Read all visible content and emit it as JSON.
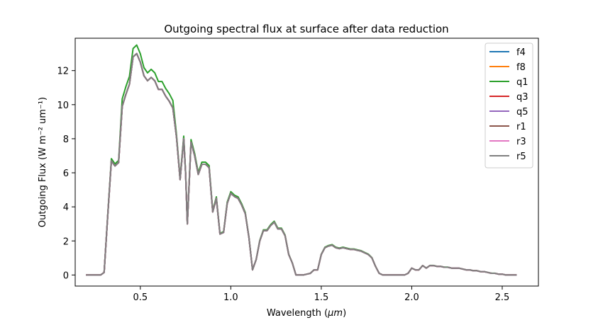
{
  "chart_data": {
    "type": "line",
    "title": "Outgoing spectral flux at surface after data reduction",
    "xlabel_text": "Wavelength (",
    "xlabel_unit": "μm",
    "xlabel_close": ")",
    "ylabel": "Outgoing Flux (W m⁻² um⁻¹)",
    "xlim": [
      0.14,
      2.7
    ],
    "ylim": [
      -0.65,
      13.9
    ],
    "x_ticks": [
      0.5,
      1.0,
      1.5,
      2.0,
      2.5
    ],
    "x_tick_labels": [
      "0.5",
      "1.0",
      "1.5",
      "2.0",
      "2.5"
    ],
    "y_ticks": [
      0,
      2,
      4,
      6,
      8,
      10,
      12
    ],
    "y_tick_labels": [
      "0",
      "2",
      "4",
      "6",
      "8",
      "10",
      "12"
    ],
    "grid": false,
    "legend_position": "top-right",
    "x": [
      0.2,
      0.22,
      0.24,
      0.26,
      0.28,
      0.3,
      0.32,
      0.34,
      0.36,
      0.38,
      0.4,
      0.42,
      0.44,
      0.46,
      0.48,
      0.5,
      0.52,
      0.54,
      0.56,
      0.58,
      0.6,
      0.62,
      0.64,
      0.66,
      0.68,
      0.7,
      0.72,
      0.74,
      0.75,
      0.76,
      0.78,
      0.8,
      0.82,
      0.84,
      0.86,
      0.88,
      0.9,
      0.92,
      0.94,
      0.96,
      0.98,
      1.0,
      1.02,
      1.04,
      1.06,
      1.08,
      1.1,
      1.12,
      1.14,
      1.16,
      1.18,
      1.2,
      1.22,
      1.24,
      1.26,
      1.28,
      1.3,
      1.32,
      1.34,
      1.36,
      1.38,
      1.4,
      1.42,
      1.44,
      1.46,
      1.48,
      1.5,
      1.52,
      1.54,
      1.56,
      1.58,
      1.6,
      1.62,
      1.64,
      1.66,
      1.68,
      1.7,
      1.72,
      1.74,
      1.76,
      1.78,
      1.8,
      1.82,
      1.84,
      1.86,
      1.88,
      1.9,
      1.92,
      1.94,
      1.96,
      1.98,
      2.0,
      2.02,
      2.04,
      2.06,
      2.08,
      2.1,
      2.12,
      2.14,
      2.16,
      2.18,
      2.2,
      2.22,
      2.24,
      2.26,
      2.28,
      2.3,
      2.32,
      2.34,
      2.36,
      2.38,
      2.4,
      2.42,
      2.44,
      2.46,
      2.48,
      2.5,
      2.52,
      2.54,
      2.56,
      2.58
    ],
    "base": [
      0,
      0,
      0,
      0,
      0,
      0.15,
      3.5,
      6.7,
      6.4,
      6.6,
      9.9,
      10.6,
      11.2,
      12.8,
      13.0,
      12.5,
      11.7,
      11.4,
      11.6,
      11.4,
      10.9,
      10.9,
      10.5,
      10.2,
      9.8,
      8.1,
      5.6,
      8.0,
      6.0,
      3.0,
      7.8,
      7.0,
      5.9,
      6.5,
      6.5,
      6.3,
      3.7,
      4.5,
      2.4,
      2.5,
      4.2,
      4.8,
      4.6,
      4.5,
      4.1,
      3.6,
      2.2,
      0.3,
      0.9,
      2.0,
      2.6,
      2.6,
      2.9,
      3.1,
      2.7,
      2.7,
      2.3,
      1.2,
      0.7,
      0,
      0,
      0,
      0.05,
      0.1,
      0.3,
      0.3,
      1.2,
      1.6,
      1.7,
      1.75,
      1.6,
      1.55,
      1.6,
      1.55,
      1.5,
      1.5,
      1.45,
      1.4,
      1.3,
      1.2,
      1.0,
      0.5,
      0.1,
      0,
      0,
      0,
      0,
      0,
      0,
      0,
      0.1,
      0.4,
      0.3,
      0.3,
      0.55,
      0.4,
      0.55,
      0.55,
      0.5,
      0.5,
      0.45,
      0.45,
      0.4,
      0.4,
      0.4,
      0.35,
      0.3,
      0.3,
      0.25,
      0.25,
      0.2,
      0.2,
      0.15,
      0.1,
      0.1,
      0.05,
      0.05,
      0,
      0,
      0,
      0
    ],
    "series": [
      {
        "name": "f4",
        "color": "#1f77b4",
        "offset": 0.0
      },
      {
        "name": "f8",
        "color": "#ff7f0e",
        "offset": 0.0
      },
      {
        "name": "q1",
        "color": "#2ca02c",
        "offset": 0.25
      },
      {
        "name": "q3",
        "color": "#d62728",
        "offset": 0.0
      },
      {
        "name": "q5",
        "color": "#9467bd",
        "offset": 0.0
      },
      {
        "name": "r1",
        "color": "#8c564b",
        "offset": 0.0
      },
      {
        "name": "r3",
        "color": "#e377c2",
        "offset": 0.0
      },
      {
        "name": "r5",
        "color": "#7f7f7f",
        "offset": 0.0
      }
    ]
  }
}
